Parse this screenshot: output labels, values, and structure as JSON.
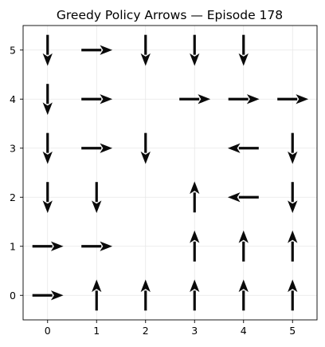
{
  "chart_data": {
    "type": "grid-policy",
    "title": "Greedy Policy Arrows — Episode 178",
    "x_ticks": [
      "0",
      "1",
      "2",
      "3",
      "4",
      "5"
    ],
    "y_ticks": [
      "0",
      "1",
      "2",
      "3",
      "4",
      "5"
    ],
    "xlim": [
      -0.5,
      5.5
    ],
    "ylim": [
      5.5,
      -0.5
    ],
    "grid": true,
    "colors": {
      "wall": "#8a8a93",
      "hazard": "#d24e50",
      "goal": "#5dc35a",
      "arrow": "#0a0a0a",
      "grid": "#e6e6e6"
    },
    "cells": [
      {
        "kind": "wall",
        "col": 2,
        "row": 1
      },
      {
        "kind": "wall",
        "col": 2,
        "row": 2
      },
      {
        "kind": "wall",
        "col": 2,
        "row": 4
      },
      {
        "kind": "hazard",
        "col": 3,
        "row": 3
      },
      {
        "kind": "goal",
        "col": 5,
        "row": 5
      }
    ],
    "arrows": [
      {
        "col": 0,
        "row": 0,
        "dir": "right"
      },
      {
        "col": 1,
        "row": 0,
        "dir": "up"
      },
      {
        "col": 2,
        "row": 0,
        "dir": "up"
      },
      {
        "col": 3,
        "row": 0,
        "dir": "up"
      },
      {
        "col": 4,
        "row": 0,
        "dir": "up"
      },
      {
        "col": 5,
        "row": 0,
        "dir": "up"
      },
      {
        "col": 0,
        "row": 1,
        "dir": "right"
      },
      {
        "col": 1,
        "row": 1,
        "dir": "right"
      },
      {
        "col": 3,
        "row": 1,
        "dir": "up"
      },
      {
        "col": 4,
        "row": 1,
        "dir": "up"
      },
      {
        "col": 5,
        "row": 1,
        "dir": "up"
      },
      {
        "col": 0,
        "row": 2,
        "dir": "down"
      },
      {
        "col": 1,
        "row": 2,
        "dir": "down"
      },
      {
        "col": 3,
        "row": 2,
        "dir": "up"
      },
      {
        "col": 4,
        "row": 2,
        "dir": "left"
      },
      {
        "col": 5,
        "row": 2,
        "dir": "down"
      },
      {
        "col": 0,
        "row": 3,
        "dir": "down"
      },
      {
        "col": 1,
        "row": 3,
        "dir": "right"
      },
      {
        "col": 2,
        "row": 3,
        "dir": "down"
      },
      {
        "col": 4,
        "row": 3,
        "dir": "left"
      },
      {
        "col": 5,
        "row": 3,
        "dir": "down"
      },
      {
        "col": 0,
        "row": 4,
        "dir": "down"
      },
      {
        "col": 1,
        "row": 4,
        "dir": "right"
      },
      {
        "col": 3,
        "row": 4,
        "dir": "right"
      },
      {
        "col": 4,
        "row": 4,
        "dir": "right"
      },
      {
        "col": 5,
        "row": 4,
        "dir": "right"
      },
      {
        "col": 0,
        "row": 5,
        "dir": "down"
      },
      {
        "col": 1,
        "row": 5,
        "dir": "right"
      },
      {
        "col": 2,
        "row": 5,
        "dir": "down"
      },
      {
        "col": 3,
        "row": 5,
        "dir": "down"
      },
      {
        "col": 4,
        "row": 5,
        "dir": "down"
      }
    ]
  }
}
